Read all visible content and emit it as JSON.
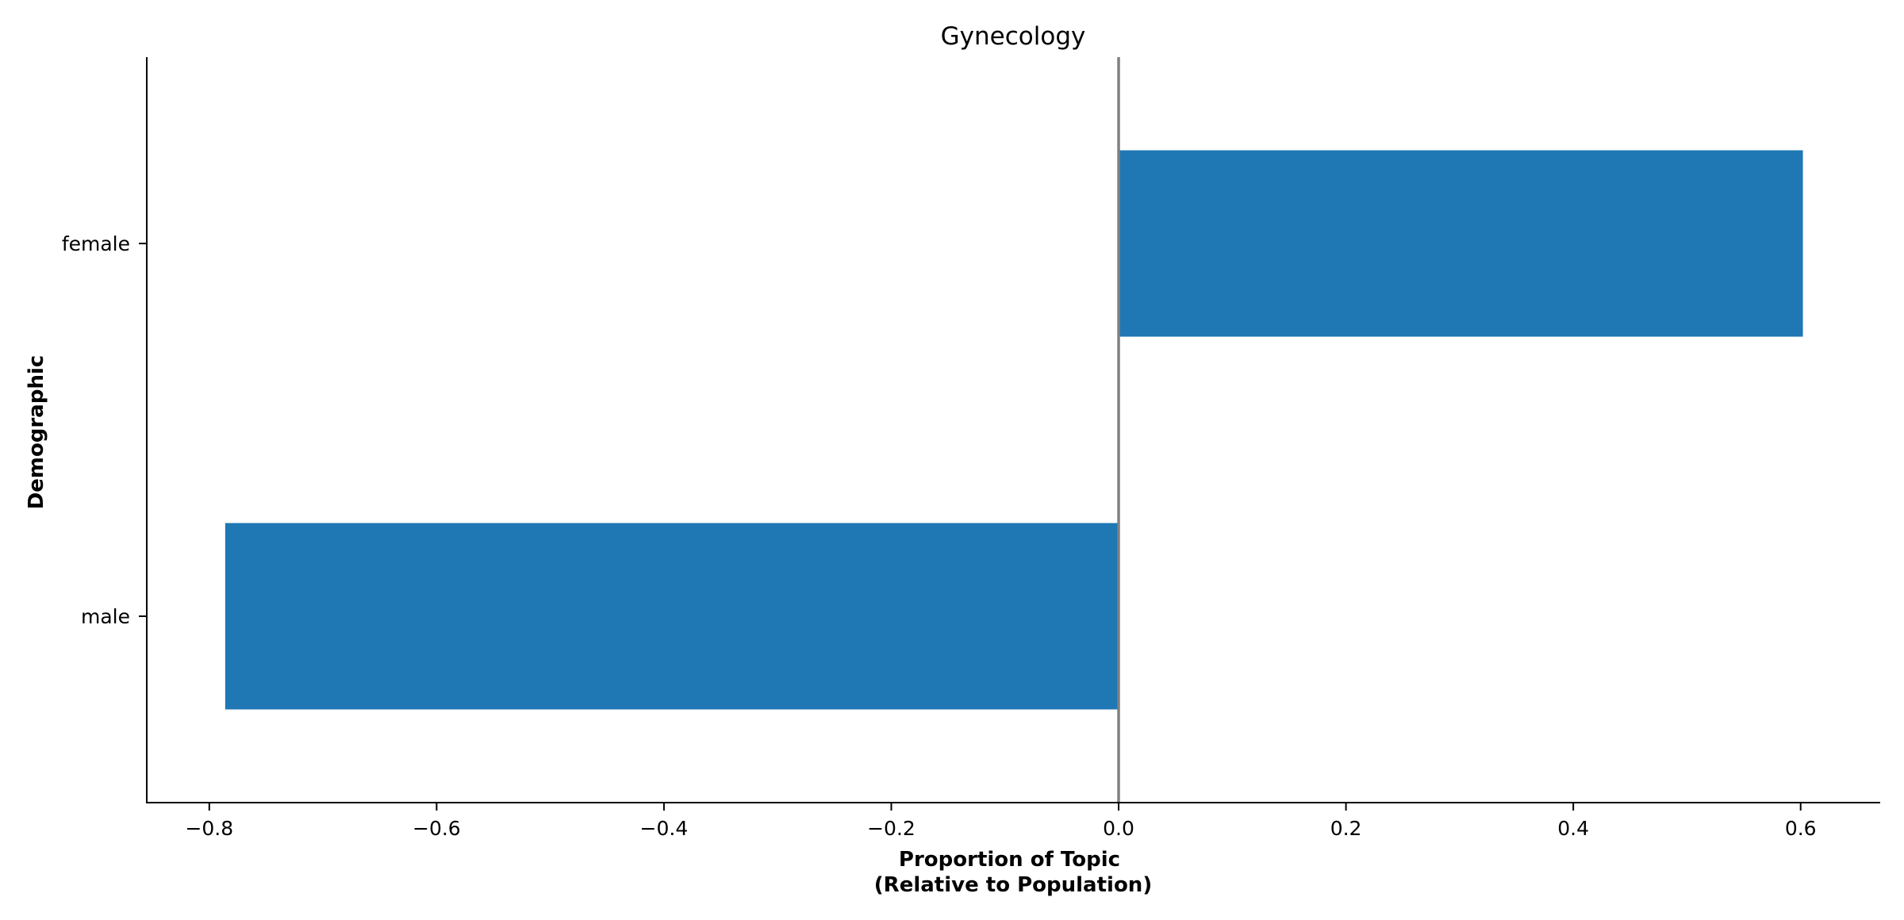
{
  "chart_data": {
    "type": "bar",
    "orientation": "horizontal",
    "title": "Gynecology",
    "xlabel": [
      "Proportion of Topic",
      "(Relative to Population)"
    ],
    "ylabel": "Demographic",
    "categories": [
      "female",
      "male"
    ],
    "values": [
      0.602,
      -0.786
    ],
    "xlim": [
      -0.855,
      0.67
    ],
    "xticks": [
      -0.8,
      -0.6,
      -0.4,
      -0.2,
      0.0,
      0.2,
      0.4,
      0.6
    ],
    "xtick_labels": [
      "−0.8",
      "−0.6",
      "−0.4",
      "−0.2",
      "0.0",
      "0.2",
      "0.4",
      "0.6"
    ],
    "reference_line_x": 0,
    "grid": false,
    "legend": "none",
    "colors": {
      "bar": "#1f77b4",
      "reference_line": "#808080",
      "axis": "#000000"
    }
  }
}
